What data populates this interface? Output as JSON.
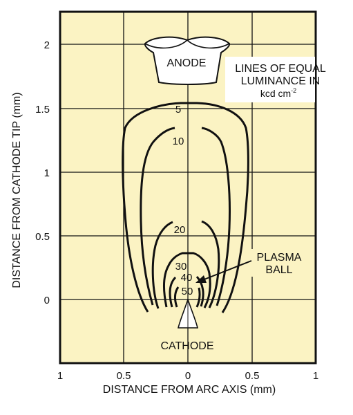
{
  "y_axis": {
    "label": "DISTANCE FROM CATHODE TIP (mm)",
    "ticks": [
      "2",
      "1.5",
      "1",
      "0.5",
      "0"
    ]
  },
  "x_axis": {
    "label": "DISTANCE FROM ARC AXIS (mm)",
    "ticks": [
      "1",
      "0.5",
      "0",
      "0.5",
      "1"
    ]
  },
  "annotations": {
    "anode": "ANODE",
    "cathode": "CATHODE",
    "legend_line1": "LINES OF EQUAL",
    "legend_line2": "LUMINANCE IN",
    "legend_unit": "kcd cm",
    "legend_exp": "-2",
    "plasma_line1": "PLASMA",
    "plasma_line2": "BALL"
  },
  "contours": [
    {
      "label": "5"
    },
    {
      "label": "10"
    },
    {
      "label": "20"
    },
    {
      "label": "30"
    },
    {
      "label": "40"
    },
    {
      "label": "50"
    }
  ],
  "colors": {
    "background": "#fbf3c3",
    "ink": "#111111",
    "grid": "#111111"
  }
}
